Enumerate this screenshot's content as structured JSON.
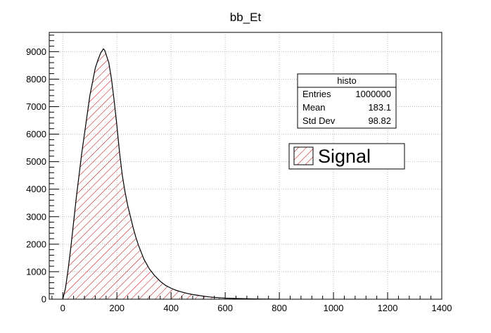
{
  "chart_data": {
    "type": "bar",
    "title": "bb_Et",
    "xlabel": "",
    "ylabel": "",
    "xlim": [
      -50,
      1400
    ],
    "ylim": [
      0,
      9700
    ],
    "x_ticks": [
      0,
      200,
      400,
      600,
      800,
      1000,
      1200,
      1400
    ],
    "y_ticks": [
      0,
      1000,
      2000,
      3000,
      4000,
      5000,
      6000,
      7000,
      8000,
      9000
    ],
    "grid": true,
    "series": [
      {
        "name": "Signal",
        "x": [
          0,
          10,
          20,
          30,
          40,
          50,
          60,
          70,
          80,
          90,
          100,
          110,
          120,
          130,
          140,
          150,
          155,
          160,
          170,
          180,
          190,
          200,
          210,
          220,
          230,
          240,
          250,
          260,
          270,
          280,
          290,
          300,
          320,
          340,
          360,
          380,
          400,
          420,
          440,
          460,
          480,
          500,
          520,
          540,
          560,
          600,
          640,
          680,
          720,
          760,
          800
        ],
        "values": [
          0,
          400,
          1100,
          1900,
          2800,
          3700,
          4500,
          5300,
          6000,
          6700,
          7400,
          7900,
          8400,
          8700,
          8950,
          9100,
          9050,
          8900,
          8600,
          8000,
          7200,
          6300,
          5300,
          4500,
          3900,
          3400,
          3000,
          2600,
          2250,
          1950,
          1700,
          1450,
          1100,
          850,
          650,
          500,
          400,
          320,
          260,
          210,
          170,
          140,
          110,
          85,
          65,
          40,
          25,
          15,
          8,
          4,
          0
        ],
        "fill_color": "#c00000",
        "line_color": "#000000"
      }
    ]
  },
  "stats_box": {
    "title": "histo",
    "rows": [
      {
        "label": "Entries",
        "value": "1000000"
      },
      {
        "label": "Mean",
        "value": "183.1"
      },
      {
        "label": "Std Dev",
        "value": "98.82"
      }
    ]
  },
  "legend": {
    "entries": [
      {
        "label": "Signal"
      }
    ]
  }
}
